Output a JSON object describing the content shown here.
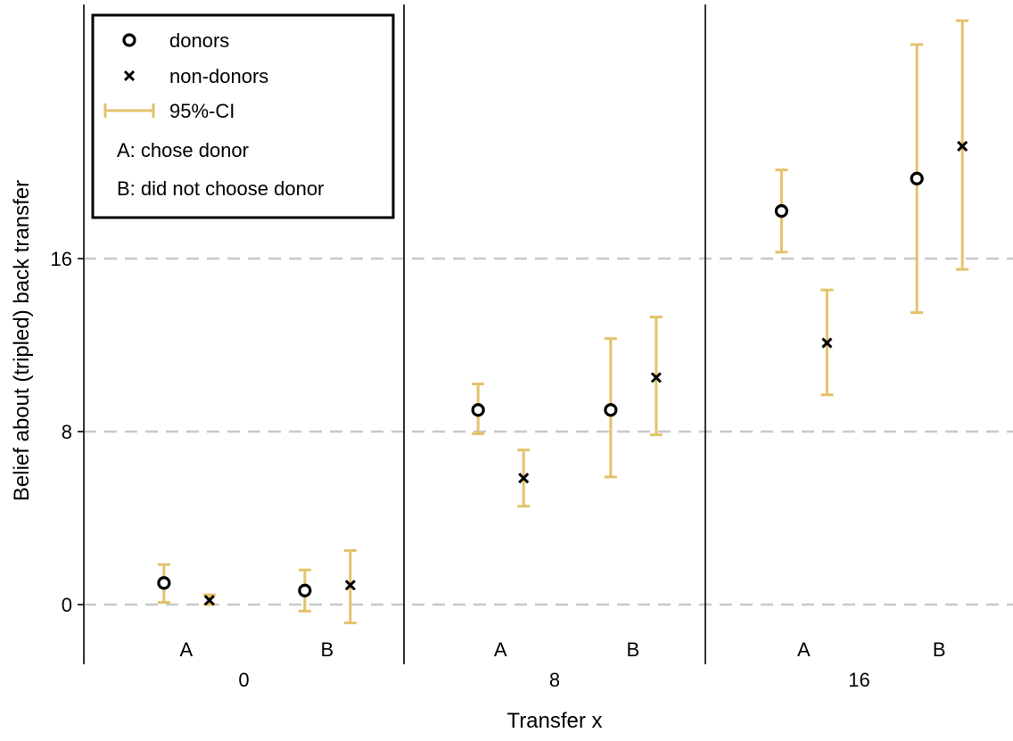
{
  "chart_data": {
    "type": "scatter",
    "title": "",
    "xlabel": "Transfer x",
    "ylabel": "Belief about (tripled) back transfer",
    "ylim": [
      -2.8,
      27.8
    ],
    "yticks": [
      0,
      8,
      16
    ],
    "grid": "dashed horizontal at y ticks",
    "legend_placement": "top-left",
    "colors": {
      "ci": "#E3C26A",
      "marker": "#000000",
      "grid": "#C8C8C8"
    },
    "panels": [
      {
        "label": "0",
        "groups": [
          "A",
          "B"
        ]
      },
      {
        "label": "8",
        "groups": [
          "A",
          "B"
        ]
      },
      {
        "label": "16",
        "groups": [
          "A",
          "B"
        ]
      }
    ],
    "series": [
      {
        "name": "donors",
        "marker": "circle",
        "points": [
          {
            "panel": "0",
            "group": "A",
            "y": 1.0,
            "ci": [
              0.1,
              1.85
            ]
          },
          {
            "panel": "0",
            "group": "B",
            "y": 0.65,
            "ci": [
              -0.3,
              1.6
            ]
          },
          {
            "panel": "8",
            "group": "A",
            "y": 9.0,
            "ci": [
              7.9,
              10.2
            ]
          },
          {
            "panel": "8",
            "group": "B",
            "y": 9.0,
            "ci": [
              5.9,
              12.3
            ]
          },
          {
            "panel": "16",
            "group": "A",
            "y": 18.2,
            "ci": [
              16.3,
              20.1
            ]
          },
          {
            "panel": "16",
            "group": "B",
            "y": 19.7,
            "ci": [
              13.5,
              25.9
            ]
          }
        ]
      },
      {
        "name": "non-donors",
        "marker": "x",
        "points": [
          {
            "panel": "0",
            "group": "A",
            "y": 0.2,
            "ci": [
              0.0,
              0.45
            ]
          },
          {
            "panel": "0",
            "group": "B",
            "y": 0.9,
            "ci": [
              -0.85,
              2.5
            ]
          },
          {
            "panel": "8",
            "group": "A",
            "y": 5.85,
            "ci": [
              4.55,
              7.15
            ]
          },
          {
            "panel": "8",
            "group": "B",
            "y": 10.5,
            "ci": [
              7.85,
              13.3
            ]
          },
          {
            "panel": "16",
            "group": "A",
            "y": 12.1,
            "ci": [
              9.7,
              14.55
            ]
          },
          {
            "panel": "16",
            "group": "B",
            "y": 21.2,
            "ci": [
              15.5,
              27.0
            ]
          }
        ]
      }
    ],
    "legend": {
      "items": [
        {
          "key": "donors",
          "label": "donors",
          "symbol": "circle"
        },
        {
          "key": "non-donors",
          "label": "non-donors",
          "symbol": "x"
        },
        {
          "key": "ci",
          "label": "95%-CI",
          "symbol": "errorbar"
        }
      ],
      "notes": [
        "A: chose donor",
        "B: did not choose donor"
      ]
    }
  }
}
